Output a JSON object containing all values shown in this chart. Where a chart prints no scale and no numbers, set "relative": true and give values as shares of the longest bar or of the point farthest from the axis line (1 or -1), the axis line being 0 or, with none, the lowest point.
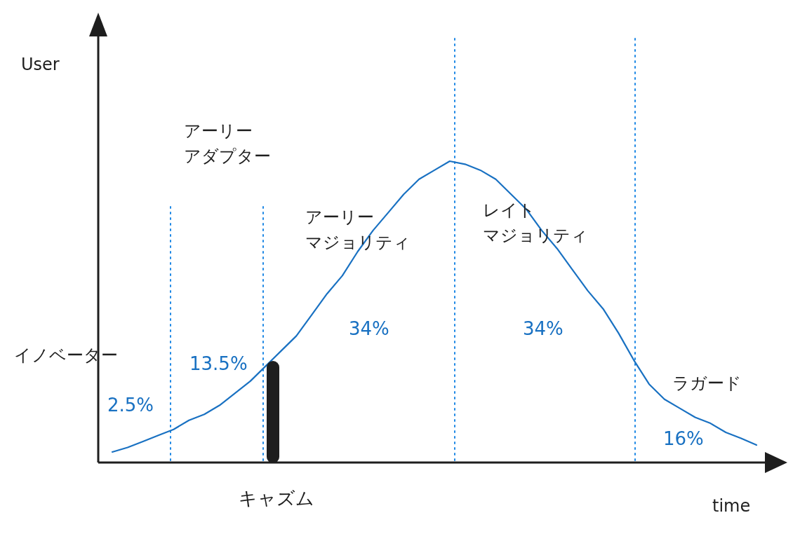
{
  "chart_data": {
    "type": "line",
    "relative": true,
    "xlabel": "time",
    "grid": false,
    "marker": "none",
    "line_style": "solid",
    "categories": [
      null,
      null,
      null,
      null,
      null,
      null,
      null,
      null,
      null,
      null,
      null,
      null,
      null,
      null,
      null,
      null,
      null,
      null,
      null,
      null,
      null,
      null,
      null,
      null,
      null,
      null,
      null,
      null,
      null,
      null,
      null,
      null,
      null,
      null,
      null,
      null,
      null,
      null,
      null,
      null,
      null,
      null,
      null
    ],
    "series": [
      {
        "color": "#1971c2",
        "values": [
          0.035,
          0.05,
          0.07,
          0.09,
          0.11,
          0.14,
          0.16,
          0.19,
          0.23,
          0.27,
          0.32,
          0.37,
          0.42,
          0.49,
          0.56,
          0.62,
          0.7,
          0.77,
          0.83,
          0.89,
          0.94,
          0.97,
          1,
          0.99,
          0.97,
          0.94,
          0.89,
          0.84,
          0.77,
          0.71,
          0.64,
          0.57,
          0.51,
          0.43,
          0.34,
          0.26,
          0.21,
          0.18,
          0.15,
          0.13,
          0.1,
          0.08,
          0.058
        ]
      }
    ],
    "annotations": [
      "User",
      "イノベーター",
      "アーリーアダプター",
      "アーリーマジョリティ",
      "レイトマジョリティ",
      "ラガード",
      "キャズム",
      "2.5%",
      "13.5%",
      "34%",
      "34%",
      "16%"
    ]
  }
}
